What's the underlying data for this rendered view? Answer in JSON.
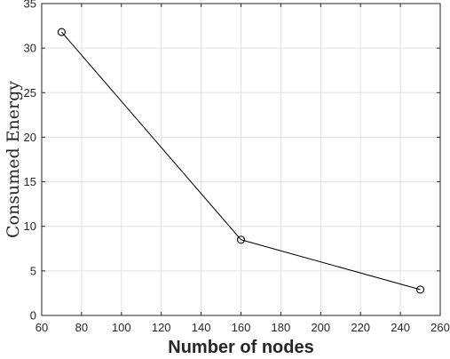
{
  "chart_data": {
    "type": "line",
    "title": "",
    "xlabel": "Number of nodes",
    "ylabel": "Consumed Energy",
    "xlim": [
      60,
      260
    ],
    "ylim": [
      0,
      35
    ],
    "xticks": [
      60,
      80,
      100,
      120,
      140,
      160,
      180,
      200,
      220,
      240,
      260
    ],
    "yticks": [
      0,
      5,
      10,
      15,
      20,
      25,
      30,
      35
    ],
    "grid": true,
    "series": [
      {
        "x": [
          70,
          160,
          250
        ],
        "y": [
          31.8,
          8.5,
          2.9
        ],
        "color": "#000000",
        "marker": "circle"
      }
    ]
  }
}
